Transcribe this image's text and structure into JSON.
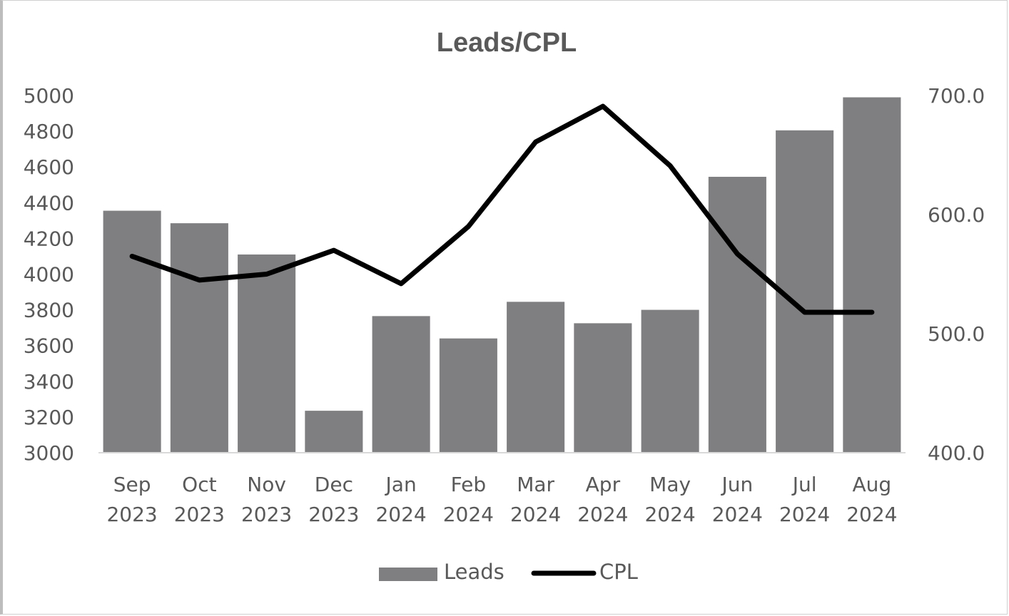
{
  "chart_data": {
    "type": "bar",
    "title": "Leads/CPL",
    "categories": [
      [
        "Sep",
        "2023"
      ],
      [
        "Oct",
        "2023"
      ],
      [
        "Nov",
        "2023"
      ],
      [
        "Dec",
        "2023"
      ],
      [
        "Jan",
        "2024"
      ],
      [
        "Feb",
        "2024"
      ],
      [
        "Mar",
        "2024"
      ],
      [
        "Apr",
        "2024"
      ],
      [
        "May",
        "2024"
      ],
      [
        "Jun",
        "2024"
      ],
      [
        "Jul",
        "2024"
      ],
      [
        "Aug",
        "2024"
      ]
    ],
    "series": [
      {
        "name": "Leads",
        "type": "bar",
        "axis": "left",
        "color": "#7f7e80",
        "values": [
          4355,
          4285,
          4110,
          3235,
          3765,
          3640,
          3845,
          3725,
          3800,
          4545,
          4805,
          4990
        ]
      },
      {
        "name": "CPL",
        "type": "line",
        "axis": "right",
        "color": "#000000",
        "values": [
          565.0,
          545.0,
          550.0,
          570.0,
          542.0,
          590.0,
          661.0,
          691.0,
          641.0,
          567.0,
          518.0,
          518.0
        ]
      }
    ],
    "y_left": {
      "min": 3000,
      "max": 5000,
      "ticks": [
        "3000",
        "3200",
        "3400",
        "3600",
        "3800",
        "4000",
        "4200",
        "4400",
        "4600",
        "4800",
        "5000"
      ]
    },
    "y_right": {
      "min": 400,
      "max": 700,
      "ticks": [
        "400.0",
        "500.0",
        "600.0",
        "700.0"
      ]
    },
    "grid": false,
    "legend_position": "bottom",
    "legend": [
      {
        "name": "Leads",
        "kind": "bar",
        "color": "#7f7e80"
      },
      {
        "name": "CPL",
        "kind": "line",
        "color": "#000000"
      }
    ]
  }
}
